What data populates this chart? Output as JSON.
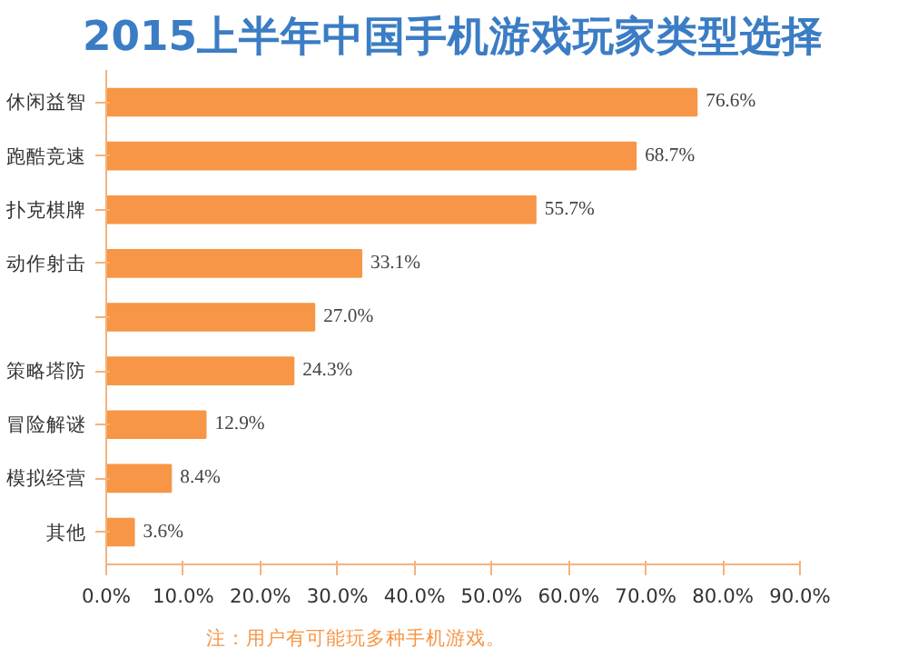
{
  "chart_data": {
    "type": "bar",
    "orientation": "horizontal",
    "title": "2015上半年中国手机游戏玩家类型选择",
    "categories": [
      "休闲益智",
      "跑酷竞速",
      "扑克棋牌",
      "动作射击",
      null,
      "策略塔防",
      "冒险解谜",
      "模拟经营",
      "其他"
    ],
    "values": [
      76.6,
      68.7,
      55.7,
      33.1,
      27.0,
      24.3,
      12.9,
      8.4,
      3.6
    ],
    "value_labels": [
      "76.6%",
      "68.7%",
      "55.7%",
      "33.1%",
      "27.0%",
      "24.3%",
      "12.9%",
      "8.4%",
      "3.6%"
    ],
    "color": "#f79646",
    "xlim": [
      0,
      90
    ],
    "xticks": [
      {
        "value": 0,
        "label": "0.0%"
      },
      {
        "value": 10,
        "label": "10.0%"
      },
      {
        "value": 20,
        "label": "20.0%"
      },
      {
        "value": 30,
        "label": "30.0%"
      },
      {
        "value": 40,
        "label": "40.0%"
      },
      {
        "value": 50,
        "label": "50.0%"
      },
      {
        "value": 60,
        "label": "60.0%"
      },
      {
        "value": 70,
        "label": "70.0%"
      },
      {
        "value": 80,
        "label": "80.0%"
      },
      {
        "value": 90,
        "label": "90.0%"
      }
    ],
    "grid": false,
    "annotations": [
      "注：用户有可能玩多种手机游戏。"
    ]
  }
}
